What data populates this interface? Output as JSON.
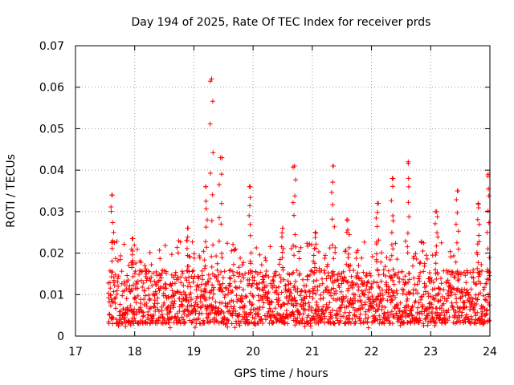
{
  "chart_data": {
    "type": "scatter",
    "title": "Day 194 of 2025, Rate Of TEC Index for receiver prds",
    "xlabel": "GPS time / hours",
    "ylabel": "ROTI / TECUs",
    "xlim": [
      17,
      24
    ],
    "ylim": [
      0,
      0.07
    ],
    "xticks": [
      17,
      18,
      19,
      20,
      21,
      22,
      23,
      24
    ],
    "xtick_labels": [
      "17",
      "18",
      "19",
      "20",
      "21",
      "22",
      "23",
      "24"
    ],
    "yticks": [
      0,
      0.01,
      0.02,
      0.03,
      0.04,
      0.05,
      0.06,
      0.07
    ],
    "ytick_labels": [
      "0",
      "0.01",
      "0.02",
      "0.03",
      "0.04",
      "0.05",
      "0.06",
      "0.07"
    ],
    "grid": true,
    "marker": "+",
    "marker_color": "#ff0000",
    "x_start": 17.55,
    "x_end": 24.0,
    "base_range": [
      0.002,
      0.02
    ],
    "peaks": [
      {
        "x": 17.62,
        "y": 0.034
      },
      {
        "x": 17.97,
        "y": 0.0235
      },
      {
        "x": 18.9,
        "y": 0.026
      },
      {
        "x": 19.2,
        "y": 0.036
      },
      {
        "x": 19.3,
        "y": 0.062
      },
      {
        "x": 19.45,
        "y": 0.043
      },
      {
        "x": 19.95,
        "y": 0.036
      },
      {
        "x": 20.5,
        "y": 0.026
      },
      {
        "x": 20.7,
        "y": 0.041
      },
      {
        "x": 21.05,
        "y": 0.025
      },
      {
        "x": 21.35,
        "y": 0.041
      },
      {
        "x": 21.6,
        "y": 0.028
      },
      {
        "x": 22.1,
        "y": 0.032
      },
      {
        "x": 22.35,
        "y": 0.038
      },
      {
        "x": 22.62,
        "y": 0.042
      },
      {
        "x": 23.1,
        "y": 0.03
      },
      {
        "x": 23.45,
        "y": 0.035
      },
      {
        "x": 23.8,
        "y": 0.032
      },
      {
        "x": 23.97,
        "y": 0.039
      }
    ]
  }
}
